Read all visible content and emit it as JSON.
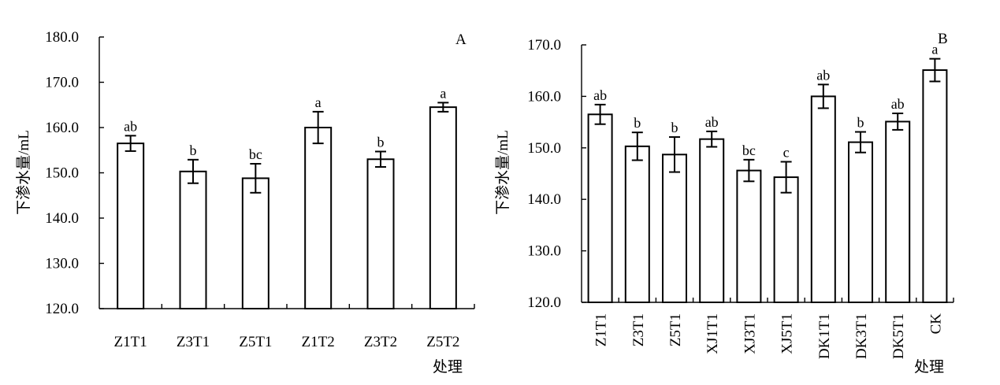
{
  "chart_data": [
    {
      "type": "bar",
      "panel": "A",
      "xlabel": "处理",
      "ylabel": "下渗水量/mL",
      "ylim": [
        120,
        180
      ],
      "yticks": [
        "120.0",
        "130.0",
        "140.0",
        "150.0",
        "160.0",
        "170.0",
        "180.0"
      ],
      "categories": [
        "Z1T1",
        "Z3T1",
        "Z5T1",
        "Z1T2",
        "Z3T2",
        "Z5T2"
      ],
      "values": [
        156.5,
        150.3,
        148.8,
        160.0,
        153.0,
        164.5
      ],
      "errors": [
        1.7,
        2.6,
        3.2,
        3.5,
        1.7,
        1.0
      ],
      "significance": [
        "ab",
        "b",
        "bc",
        "a",
        "b",
        "a"
      ]
    },
    {
      "type": "bar",
      "panel": "B",
      "xlabel": "处理",
      "ylabel": "下渗水量/mL",
      "ylim": [
        120,
        170
      ],
      "yticks": [
        "120.0",
        "130.0",
        "140.0",
        "150.0",
        "160.0",
        "170.0"
      ],
      "categories": [
        "Z1T1",
        "Z3T1",
        "Z5T1",
        "XJ1T1",
        "XJ3T1",
        "XJ5T1",
        "DK1T1",
        "DK3T1",
        "DK5T1",
        "CK"
      ],
      "values": [
        156.5,
        150.3,
        148.7,
        151.7,
        145.6,
        144.3,
        160.0,
        151.1,
        155.1,
        165.1
      ],
      "errors": [
        1.9,
        2.7,
        3.4,
        1.5,
        2.1,
        3.0,
        2.3,
        2.0,
        1.6,
        2.2
      ],
      "significance": [
        "ab",
        "b",
        "b",
        "ab",
        "bc",
        "c",
        "ab",
        "b",
        "ab",
        "a"
      ]
    }
  ]
}
